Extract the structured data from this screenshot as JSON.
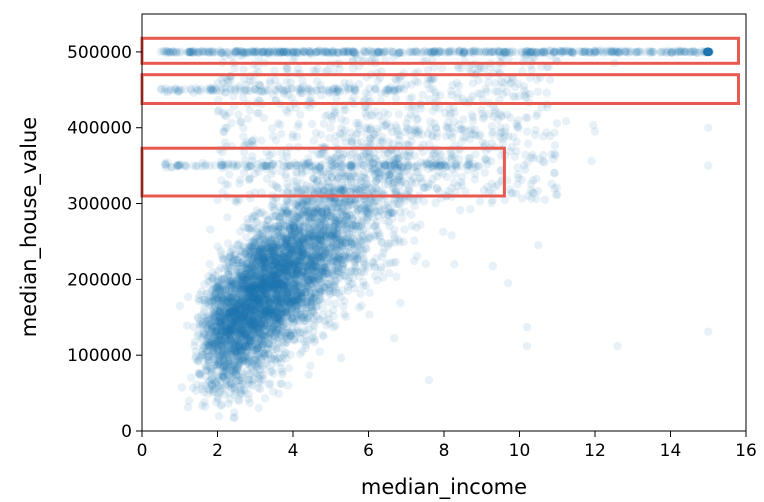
{
  "chart_data": {
    "type": "scatter",
    "title": "",
    "xlabel": "median_income",
    "ylabel": "median_house_value",
    "xlim": [
      0,
      16
    ],
    "ylim": [
      0,
      550000
    ],
    "xticks": [
      0,
      2,
      4,
      6,
      8,
      10,
      12,
      14,
      16
    ],
    "yticks": [
      0,
      100000,
      200000,
      300000,
      400000,
      500000
    ],
    "xtick_labels": [
      "0",
      "2",
      "4",
      "6",
      "8",
      "10",
      "12",
      "14",
      "16"
    ],
    "ytick_labels": [
      "0",
      "100000",
      "200000",
      "300000",
      "400000",
      "500000"
    ],
    "grid": false,
    "marker_color": "#1f77b4",
    "marker_alpha": 0.1,
    "highlight_color": "#e8594f",
    "trend": {
      "note_relationship": "positive",
      "approx_slope_per_income_unit": 42000,
      "approx_intercept": 45000
    },
    "horizontal_caps": [
      500001,
      450000,
      350000
    ],
    "highlight_boxes": [
      {
        "x": [
          0,
          15.8
        ],
        "y": [
          485000,
          518000
        ]
      },
      {
        "x": [
          0,
          15.8
        ],
        "y": [
          432000,
          470000
        ]
      },
      {
        "x": [
          0,
          9.6
        ],
        "y": [
          310000,
          373000
        ]
      }
    ],
    "sample_points": [
      {
        "x": 15.0,
        "y": 500001
      },
      {
        "x": 15.0,
        "y": 400000
      },
      {
        "x": 15.0,
        "y": 350000
      },
      {
        "x": 15.0,
        "y": 131000
      },
      {
        "x": 12.6,
        "y": 112000
      },
      {
        "x": 10.2,
        "y": 137000
      },
      {
        "x": 10.2,
        "y": 112000
      },
      {
        "x": 11.0,
        "y": 312000
      },
      {
        "x": 10.5,
        "y": 245000
      },
      {
        "x": 12.0,
        "y": 395000
      },
      {
        "x": 9.7,
        "y": 195000
      },
      {
        "x": 8.2,
        "y": 258000
      },
      {
        "x": 7.6,
        "y": 67000
      },
      {
        "x": 2.8,
        "y": 230000
      },
      {
        "x": 1.0,
        "y": 165000
      }
    ]
  }
}
